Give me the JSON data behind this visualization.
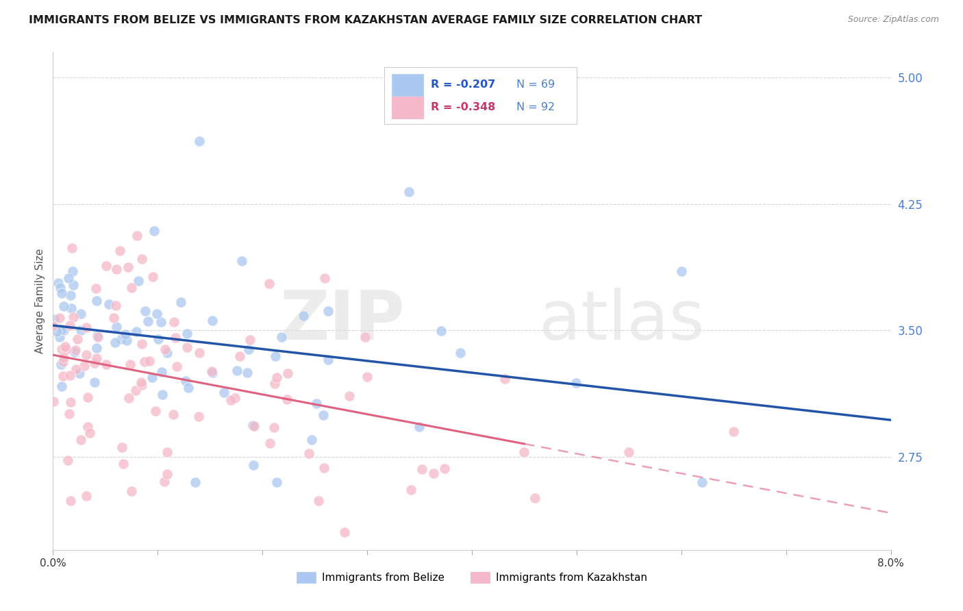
{
  "title": "IMMIGRANTS FROM BELIZE VS IMMIGRANTS FROM KAZAKHSTAN AVERAGE FAMILY SIZE CORRELATION CHART",
  "source": "Source: ZipAtlas.com",
  "ylabel": "Average Family Size",
  "yticks": [
    2.75,
    3.5,
    4.25,
    5.0
  ],
  "xmin": 0.0,
  "xmax": 0.08,
  "ymin": 2.2,
  "ymax": 5.15,
  "series1": {
    "label": "Immigrants from Belize",
    "R": -0.207,
    "N": 69,
    "color": "#aac8f0",
    "trend_color": "#2255aa",
    "trend_solid_end": 0.08
  },
  "series2": {
    "label": "Immigrants from Kazakhstan",
    "R": -0.348,
    "N": 92,
    "color": "#f5b8c8",
    "trend_color": "#e06080",
    "trend_solid_end": 0.045,
    "trend_dash_start": 0.045,
    "trend_dash_end": 0.08
  },
  "watermark_zip": "ZIP",
  "watermark_atlas": "atlas",
  "background_color": "#ffffff",
  "grid_color": "#cccccc",
  "axis_label_color": "#4a7fd4",
  "title_color": "#1a1a1a",
  "title_fontsize": 11.5,
  "axis_fontsize": 11,
  "legend_R_color": "#2255cc",
  "legend_R2_color": "#cc3366"
}
